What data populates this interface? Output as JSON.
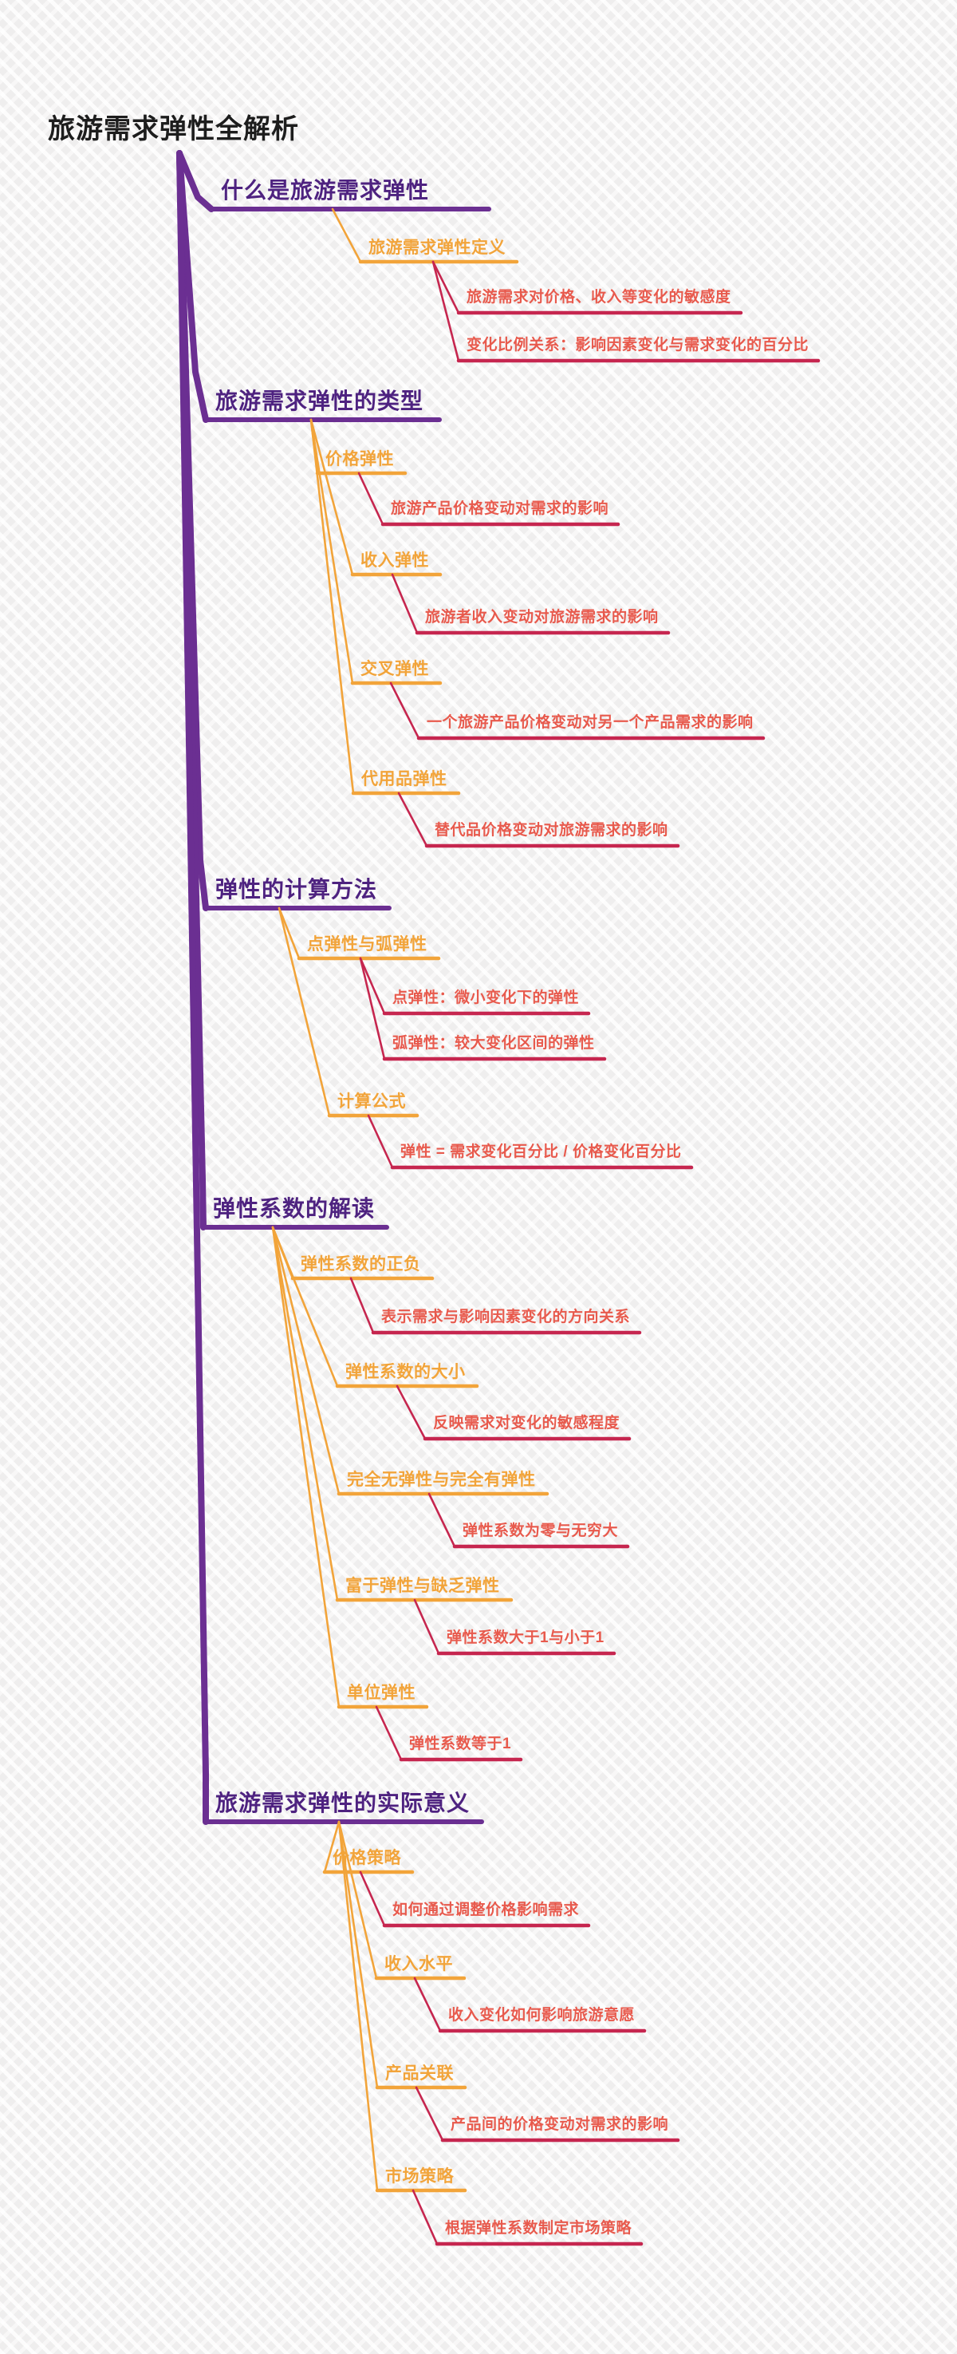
{
  "page": {
    "title": "旅游需求弹性全解析"
  },
  "palette": {
    "title_text": "#1d1d1d",
    "branch_text": "#4e2280",
    "branch_line": "#6b2f92",
    "topic_text": "#f2a43a",
    "topic_line": "#f2a43a",
    "detail_text": "#e85a4d",
    "detail_line": "#c6264f",
    "background": "#efeeee"
  },
  "mindmap": {
    "root": "旅游需求弹性全解析",
    "branches": [
      {
        "label": "什么是旅游需求弹性",
        "children": [
          {
            "label": "旅游需求弹性定义",
            "leaves": [
              "旅游需求对价格、收入等变化的敏感度",
              "变化比例关系：影响因素变化与需求变化的百分比"
            ]
          }
        ]
      },
      {
        "label": "旅游需求弹性的类型",
        "children": [
          {
            "label": "价格弹性",
            "leaves": [
              "旅游产品价格变动对需求的影响"
            ]
          },
          {
            "label": "收入弹性",
            "leaves": [
              "旅游者收入变动对旅游需求的影响"
            ]
          },
          {
            "label": "交叉弹性",
            "leaves": [
              "一个旅游产品价格变动对另一个产品需求的影响"
            ]
          },
          {
            "label": "代用品弹性",
            "leaves": [
              "替代品价格变动对旅游需求的影响"
            ]
          }
        ]
      },
      {
        "label": "弹性的计算方法",
        "children": [
          {
            "label": "点弹性与弧弹性",
            "leaves": [
              "点弹性：微小变化下的弹性",
              "弧弹性：较大变化区间的弹性"
            ]
          },
          {
            "label": "计算公式",
            "leaves": [
              "弹性 = 需求变化百分比 / 价格变化百分比"
            ]
          }
        ]
      },
      {
        "label": "弹性系数的解读",
        "children": [
          {
            "label": "弹性系数的正负",
            "leaves": [
              "表示需求与影响因素变化的方向关系"
            ]
          },
          {
            "label": "弹性系数的大小",
            "leaves": [
              "反映需求对变化的敏感程度"
            ]
          },
          {
            "label": "完全无弹性与完全有弹性",
            "leaves": [
              "弹性系数为零与无穷大"
            ]
          },
          {
            "label": "富于弹性与缺乏弹性",
            "leaves": [
              "弹性系数大于1与小于1"
            ]
          },
          {
            "label": "单位弹性",
            "leaves": [
              "弹性系数等于1"
            ]
          }
        ]
      },
      {
        "label": "旅游需求弹性的实际意义",
        "children": [
          {
            "label": "价格策略",
            "leaves": [
              "如何通过调整价格影响需求"
            ]
          },
          {
            "label": "收入水平",
            "leaves": [
              "收入变化如何影响旅游意愿"
            ]
          },
          {
            "label": "产品关联",
            "leaves": [
              "产品间的价格变动对需求的影响"
            ]
          },
          {
            "label": "市场策略",
            "leaves": [
              "根据弹性系数制定市场策略"
            ]
          }
        ]
      }
    ]
  }
}
